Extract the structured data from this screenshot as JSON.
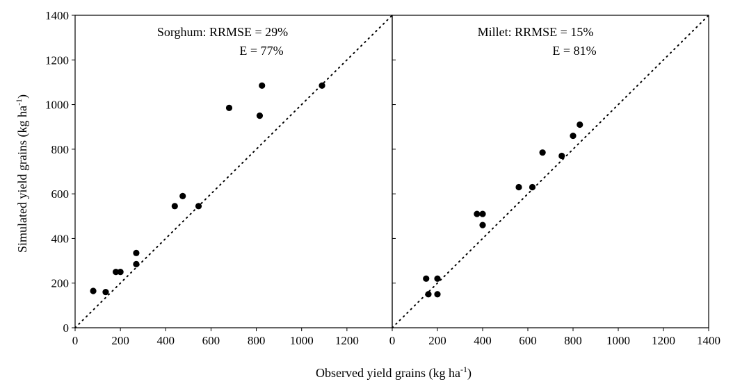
{
  "chart_data": [
    {
      "type": "scatter",
      "panel": "left",
      "annotation_lines": [
        "Sorghum: RRMSE = 29%",
        "E = 77%"
      ],
      "xlim": [
        0,
        1400
      ],
      "ylim": [
        0,
        1400
      ],
      "x_ticks": [
        0,
        200,
        400,
        600,
        800,
        1000,
        1200
      ],
      "y_ticks": [
        0,
        200,
        400,
        600,
        800,
        1000,
        1200,
        1400
      ],
      "reference_line": "1:1 dotted",
      "grid": false,
      "points": [
        {
          "x": 80,
          "y": 165
        },
        {
          "x": 135,
          "y": 160
        },
        {
          "x": 180,
          "y": 250
        },
        {
          "x": 200,
          "y": 250
        },
        {
          "x": 270,
          "y": 335
        },
        {
          "x": 270,
          "y": 285
        },
        {
          "x": 440,
          "y": 545
        },
        {
          "x": 475,
          "y": 590
        },
        {
          "x": 545,
          "y": 545
        },
        {
          "x": 680,
          "y": 985
        },
        {
          "x": 815,
          "y": 950
        },
        {
          "x": 825,
          "y": 1085
        },
        {
          "x": 1090,
          "y": 1085
        }
      ]
    },
    {
      "type": "scatter",
      "panel": "right",
      "annotation_lines": [
        "Millet: RRMSE = 15%",
        "E = 81%"
      ],
      "xlim": [
        0,
        1400
      ],
      "ylim": [
        0,
        1400
      ],
      "x_ticks": [
        0,
        200,
        400,
        600,
        800,
        1000,
        1200,
        1400
      ],
      "y_ticks": [
        0,
        200,
        400,
        600,
        800,
        1000,
        1200,
        1400
      ],
      "reference_line": "1:1 dotted",
      "grid": false,
      "points": [
        {
          "x": 150,
          "y": 220
        },
        {
          "x": 160,
          "y": 150
        },
        {
          "x": 200,
          "y": 220
        },
        {
          "x": 200,
          "y": 150
        },
        {
          "x": 375,
          "y": 510
        },
        {
          "x": 400,
          "y": 510
        },
        {
          "x": 400,
          "y": 460
        },
        {
          "x": 560,
          "y": 630
        },
        {
          "x": 620,
          "y": 630
        },
        {
          "x": 665,
          "y": 785
        },
        {
          "x": 750,
          "y": 770
        },
        {
          "x": 800,
          "y": 860
        },
        {
          "x": 830,
          "y": 910
        }
      ]
    }
  ],
  "axes": {
    "xlabel": "Observed yield grains (kg ha",
    "xlabel_sup": "-1",
    "xlabel_end": ")",
    "ylabel": "Simulated yield grains (kg ha",
    "ylabel_sup": "-1",
    "ylabel_end": ")"
  }
}
